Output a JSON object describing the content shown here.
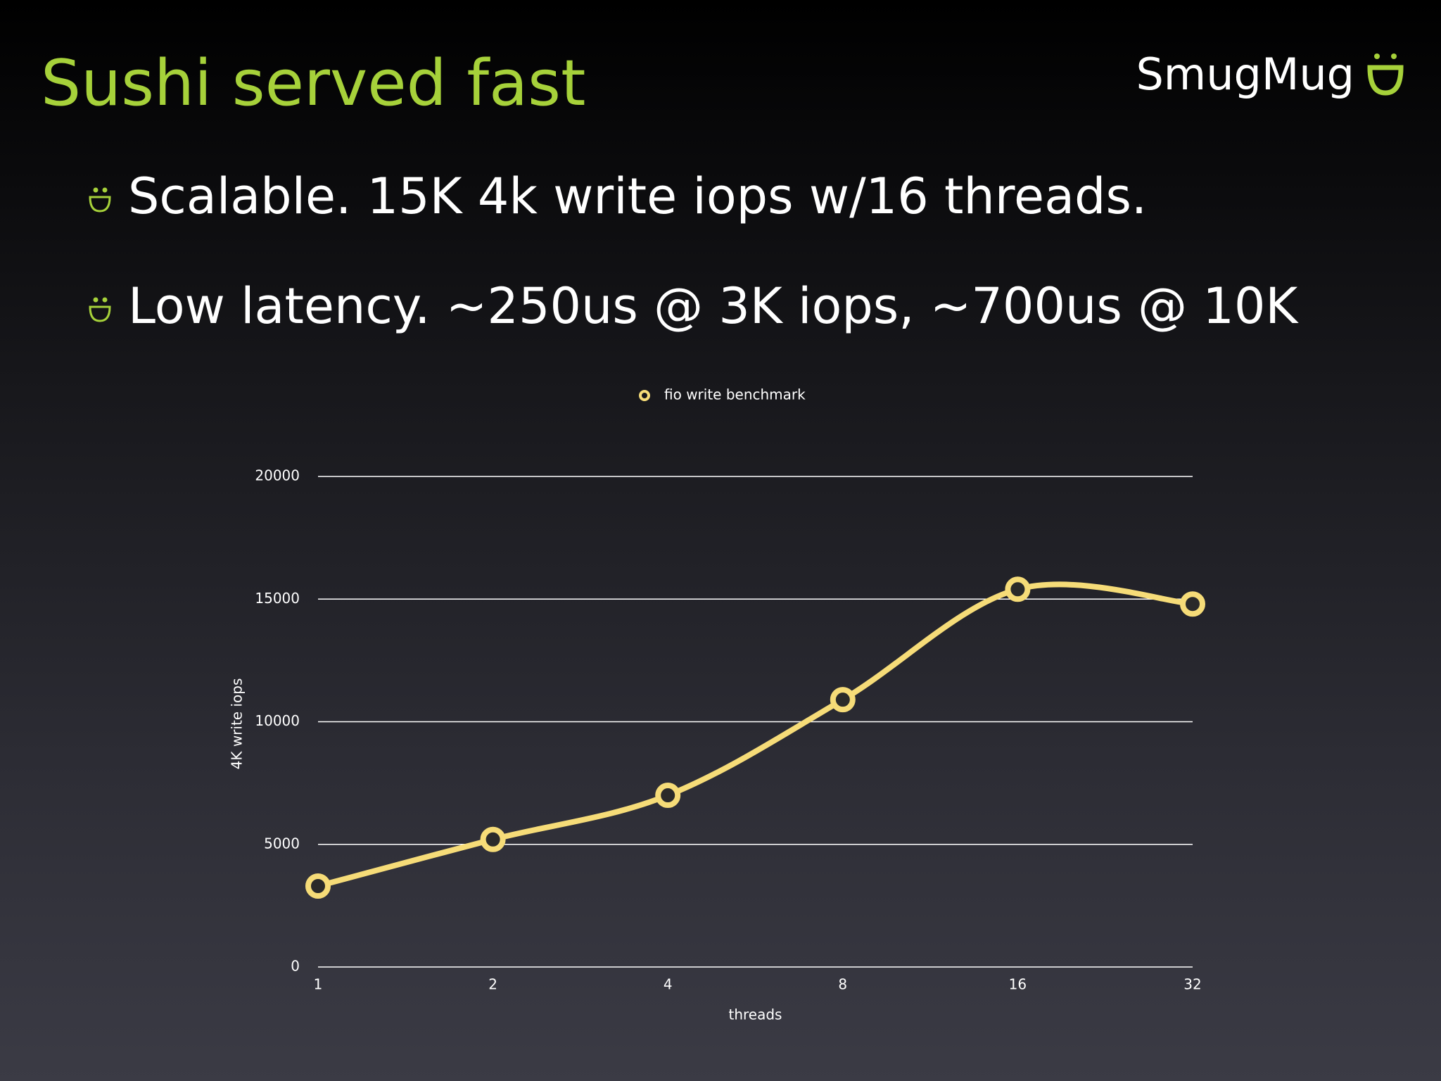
{
  "header": {
    "title": "Sushi served fast",
    "logo": "SmugMug"
  },
  "bullets": [
    "Scalable.  15K 4k write iops w/16 threads.",
    "Low latency.  ~250us @ 3K iops, ~700us @ 10K"
  ],
  "chart_data": {
    "type": "line",
    "categories": [
      "1",
      "2",
      "4",
      "8",
      "16",
      "32"
    ],
    "series": [
      {
        "name": "fio write benchmark",
        "color": "#f6dc78",
        "values": [
          3300,
          5200,
          7000,
          10900,
          15400,
          14800
        ]
      }
    ],
    "ylim": [
      0,
      20000
    ],
    "yticks": [
      0,
      5000,
      10000,
      15000,
      20000
    ],
    "x_label": "threads",
    "y_label": "4K write iops",
    "grid": true,
    "legend": "top"
  }
}
